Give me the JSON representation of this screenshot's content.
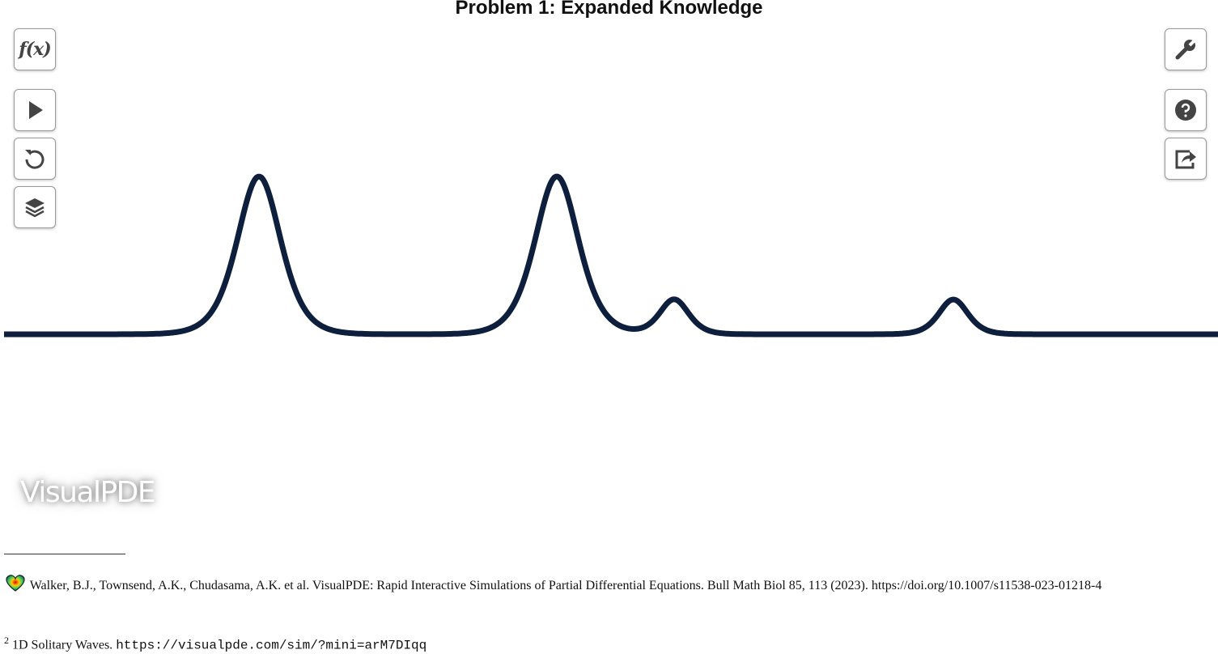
{
  "header": {
    "title": "Problem 1: Expanded Knowledge"
  },
  "toolbar": {
    "equations_icon": "f(x)"
  },
  "watermark": "VisualPDE",
  "footnotes": [
    {
      "text": "Walker, B.J., Townsend, A.K., Chudasama, A.K. et al. VisualPDE: Rapid Interactive Simulations of Partial Differential Equations. Bull Math Biol 85, 113 (2023). https://doi.org/10.1007/s11538-023-01218-4"
    },
    {
      "marker": "2",
      "text": "1D Solitary Waves.",
      "link": "https://visualpde.com/sim/?mini=arM7DIqq"
    }
  ]
}
